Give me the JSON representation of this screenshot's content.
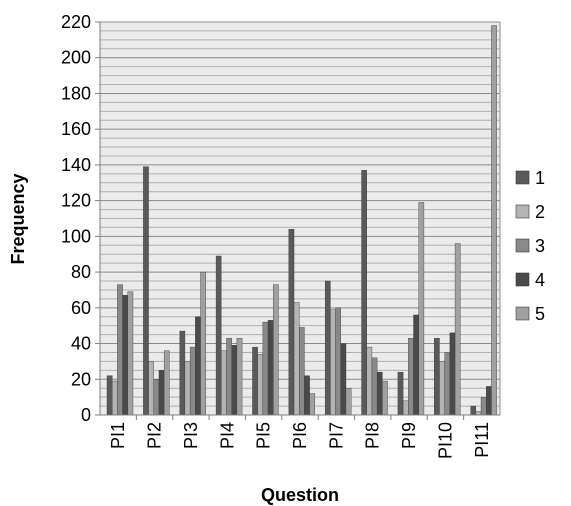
{
  "chart_data": {
    "type": "bar",
    "xlabel": "Question",
    "ylabel": "Frequency",
    "ylim": [
      0,
      220
    ],
    "y_major_ticks": [
      0,
      20,
      40,
      60,
      80,
      100,
      120,
      140,
      160,
      180,
      200,
      220
    ],
    "y_minor_step": 5,
    "grid": true,
    "legend_position": "right",
    "categories": [
      "PI1",
      "PI2",
      "PI3",
      "PI4",
      "PI5",
      "PI6",
      "PI7",
      "PI8",
      "PI9",
      "PI10",
      "PI11"
    ],
    "series": [
      {
        "name": "1",
        "color": "#5a5a5a",
        "values": [
          22,
          139,
          47,
          89,
          38,
          104,
          75,
          137,
          24,
          43,
          5
        ]
      },
      {
        "name": "2",
        "color": "#b4b4b4",
        "values": [
          19,
          30,
          30,
          36,
          34,
          63,
          59,
          38,
          8,
          30,
          2
        ]
      },
      {
        "name": "3",
        "color": "#898989",
        "values": [
          73,
          20,
          38,
          43,
          52,
          49,
          60,
          32,
          43,
          35,
          10
        ]
      },
      {
        "name": "4",
        "color": "#4a4a4a",
        "values": [
          67,
          25,
          55,
          39,
          53,
          22,
          40,
          24,
          56,
          46,
          16
        ]
      },
      {
        "name": "5",
        "color": "#a0a0a0",
        "values": [
          69,
          36,
          80,
          43,
          73,
          12,
          15,
          19,
          119,
          96,
          218
        ]
      }
    ]
  }
}
